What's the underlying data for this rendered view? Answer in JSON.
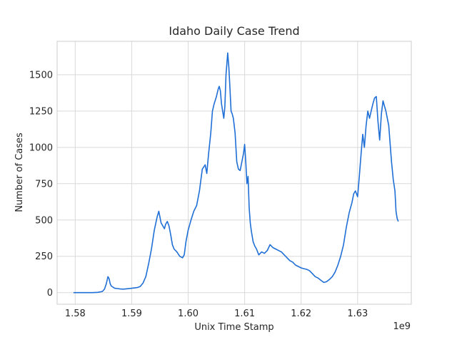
{
  "chart_data": {
    "type": "line",
    "title": "Idaho Daily Case Trend",
    "xlabel": "Unix Time Stamp",
    "ylabel": "Number of Cases",
    "x_offset_label": "1e9",
    "xlim": [
      1.5768,
      1.6395
    ],
    "ylim": [
      -80,
      1730
    ],
    "x_ticks": [
      1.58,
      1.59,
      1.6,
      1.61,
      1.62,
      1.63
    ],
    "x_tick_labels": [
      "1.58",
      "1.59",
      "1.60",
      "1.61",
      "1.62",
      "1.63"
    ],
    "y_ticks": [
      0,
      250,
      500,
      750,
      1000,
      1250,
      1500
    ],
    "y_tick_labels": [
      "0",
      "250",
      "500",
      "750",
      "1000",
      "1250",
      "1500"
    ],
    "grid": true,
    "line_color": "#1f6fd6",
    "series": [
      {
        "x": [
          1.5797,
          1.58,
          1.581,
          1.582,
          1.583,
          1.584,
          1.5848,
          1.5852,
          1.5855,
          1.5858,
          1.586,
          1.5862,
          1.5864,
          1.5866,
          1.5868,
          1.587,
          1.5875,
          1.588,
          1.5885,
          1.589,
          1.59,
          1.591,
          1.5915,
          1.592,
          1.5925,
          1.593,
          1.5935,
          1.594,
          1.5945,
          1.5948,
          1.595,
          1.5952,
          1.5955,
          1.5958,
          1.596,
          1.5963,
          1.5966,
          1.5969,
          1.5972,
          1.5975,
          1.598,
          1.5985,
          1.599,
          1.5993,
          1.5996,
          1.6,
          1.6005,
          1.601,
          1.6015,
          1.602,
          1.6025,
          1.603,
          1.6033,
          1.6036,
          1.604,
          1.6043,
          1.6046,
          1.605,
          1.6053,
          1.6055,
          1.6057,
          1.6059,
          1.6061,
          1.6063,
          1.6065,
          1.6067,
          1.607,
          1.6072,
          1.6074,
          1.6076,
          1.6078,
          1.608,
          1.6083,
          1.6086,
          1.6089,
          1.6092,
          1.6095,
          1.6098,
          1.61,
          1.6102,
          1.6104,
          1.6106,
          1.6108,
          1.611,
          1.6112,
          1.6115,
          1.6118,
          1.6121,
          1.6125,
          1.613,
          1.6135,
          1.614,
          1.6145,
          1.615,
          1.6155,
          1.616,
          1.6165,
          1.617,
          1.6175,
          1.618,
          1.6185,
          1.619,
          1.6195,
          1.62,
          1.6205,
          1.621,
          1.6215,
          1.622,
          1.6225,
          1.623,
          1.6235,
          1.624,
          1.6245,
          1.625,
          1.6255,
          1.626,
          1.6265,
          1.627,
          1.6275,
          1.628,
          1.6285,
          1.629,
          1.6293,
          1.6296,
          1.63,
          1.6303,
          1.6306,
          1.6309,
          1.6312,
          1.6315,
          1.6318,
          1.6321,
          1.6324,
          1.6327,
          1.633,
          1.6333,
          1.6336,
          1.6339,
          1.6342,
          1.6345,
          1.635,
          1.6355,
          1.636,
          1.6363,
          1.6366,
          1.6368,
          1.637,
          1.6372
        ],
        "y": [
          0,
          0,
          0,
          0,
          0,
          2,
          8,
          25,
          60,
          110,
          95,
          60,
          45,
          40,
          35,
          30,
          28,
          25,
          24,
          26,
          30,
          35,
          42,
          65,
          110,
          200,
          300,
          430,
          520,
          560,
          520,
          480,
          460,
          440,
          470,
          490,
          460,
          400,
          330,
          300,
          280,
          250,
          240,
          260,
          350,
          430,
          500,
          560,
          600,
          700,
          850,
          880,
          820,
          950,
          1100,
          1250,
          1300,
          1350,
          1400,
          1420,
          1390,
          1300,
          1250,
          1200,
          1280,
          1500,
          1650,
          1550,
          1400,
          1250,
          1230,
          1200,
          1100,
          900,
          850,
          840,
          900,
          960,
          1020,
          900,
          750,
          800,
          580,
          480,
          420,
          350,
          320,
          300,
          260,
          280,
          270,
          290,
          330,
          310,
          300,
          290,
          280,
          260,
          240,
          220,
          210,
          190,
          180,
          170,
          165,
          160,
          150,
          130,
          110,
          100,
          85,
          70,
          75,
          90,
          110,
          140,
          190,
          250,
          330,
          450,
          550,
          620,
          680,
          700,
          660,
          800,
          950,
          1090,
          1000,
          1150,
          1250,
          1200,
          1250,
          1300,
          1340,
          1350,
          1180,
          1050,
          1230,
          1320,
          1250,
          1150,
          900,
          780,
          700,
          560,
          510,
          490
        ]
      }
    ]
  }
}
